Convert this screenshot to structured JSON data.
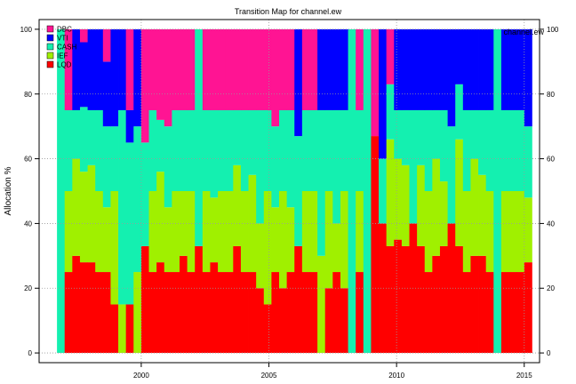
{
  "chart_data": {
    "type": "area",
    "stacked": true,
    "title": "Transition Map for channel.ew",
    "corner_label": "channel.ew",
    "ylabel": "Allocation %",
    "xlabel": "",
    "xlim": [
      1996.0,
      2015.6
    ],
    "ylim": [
      -3,
      103
    ],
    "x_ticks": [
      2000,
      2005,
      2010,
      2015
    ],
    "y_ticks": [
      0,
      20,
      40,
      60,
      80,
      100
    ],
    "grid": true,
    "legend_position": "top-left",
    "series": [
      {
        "name": "LQD",
        "color": "#ff0000"
      },
      {
        "name": "IEF",
        "color": "#a0f000"
      },
      {
        "name": "CASH",
        "color": "#14f0b0"
      },
      {
        "name": "VTI",
        "color": "#0000ff"
      },
      {
        "name": "DBC",
        "color": "#ff1493"
      }
    ],
    "data": {
      "x": [
        1996.7,
        1997.0,
        1997.3,
        1997.6,
        1997.9,
        1998.2,
        1998.5,
        1998.8,
        1999.1,
        1999.4,
        1999.7,
        2000.0,
        2000.3,
        2000.6,
        2000.9,
        2001.2,
        2001.5,
        2001.8,
        2002.1,
        2002.4,
        2002.7,
        2003.0,
        2003.3,
        2003.6,
        2003.9,
        2004.2,
        2004.5,
        2004.8,
        2005.1,
        2005.4,
        2005.7,
        2006.0,
        2006.3,
        2006.6,
        2006.9,
        2007.2,
        2007.5,
        2007.8,
        2008.1,
        2008.4,
        2008.7,
        2009.0,
        2009.3,
        2009.6,
        2009.9,
        2010.2,
        2010.5,
        2010.8,
        2011.1,
        2011.4,
        2011.7,
        2012.0,
        2012.3,
        2012.6,
        2012.9,
        2013.2,
        2013.5,
        2013.8,
        2014.1,
        2014.4,
        2014.7,
        2015.0
      ],
      "LQD": [
        0,
        25,
        30,
        28,
        28,
        25,
        25,
        15,
        0,
        15,
        0,
        33,
        25,
        28,
        25,
        25,
        30,
        25,
        33,
        25,
        28,
        25,
        25,
        33,
        25,
        25,
        20,
        15,
        25,
        20,
        25,
        33,
        25,
        25,
        0,
        20,
        25,
        20,
        0,
        25,
        0,
        67,
        40,
        33,
        35,
        33,
        40,
        33,
        25,
        30,
        33,
        40,
        33,
        25,
        30,
        30,
        25,
        0,
        25,
        25,
        25,
        28
      ],
      "IEF": [
        0,
        25,
        30,
        28,
        30,
        25,
        20,
        35,
        15,
        0,
        25,
        0,
        25,
        28,
        20,
        25,
        20,
        25,
        0,
        25,
        20,
        25,
        25,
        25,
        25,
        30,
        20,
        35,
        20,
        30,
        20,
        0,
        25,
        25,
        30,
        30,
        15,
        30,
        0,
        25,
        0,
        0,
        0,
        33,
        25,
        25,
        0,
        25,
        25,
        30,
        20,
        0,
        33,
        25,
        30,
        25,
        25,
        0,
        25,
        25,
        25,
        20
      ],
      "CASH": [
        100,
        25,
        15,
        20,
        17,
        25,
        25,
        20,
        60,
        50,
        45,
        32,
        25,
        16,
        25,
        25,
        25,
        25,
        67,
        25,
        27,
        25,
        25,
        17,
        25,
        20,
        35,
        25,
        25,
        25,
        30,
        34,
        25,
        25,
        45,
        25,
        35,
        25,
        100,
        25,
        100,
        0,
        20,
        17,
        15,
        17,
        35,
        17,
        25,
        15,
        22,
        30,
        17,
        25,
        15,
        20,
        25,
        100,
        25,
        25,
        25,
        22
      ],
      "VTI": [
        0,
        0,
        25,
        20,
        25,
        25,
        20,
        30,
        25,
        10,
        30,
        0,
        0,
        0,
        0,
        0,
        0,
        0,
        0,
        0,
        0,
        0,
        0,
        0,
        0,
        0,
        0,
        0,
        0,
        0,
        0,
        33,
        0,
        0,
        25,
        25,
        25,
        25,
        0,
        0,
        0,
        0,
        40,
        0,
        25,
        25,
        25,
        25,
        25,
        25,
        25,
        30,
        17,
        25,
        25,
        25,
        25,
        0,
        25,
        25,
        25,
        30
      ],
      "DBC": [
        0,
        25,
        0,
        4,
        0,
        0,
        10,
        0,
        0,
        25,
        0,
        35,
        25,
        28,
        30,
        25,
        25,
        25,
        0,
        25,
        25,
        25,
        25,
        25,
        25,
        25,
        25,
        25,
        30,
        25,
        25,
        0,
        25,
        25,
        0,
        0,
        0,
        0,
        0,
        25,
        0,
        33,
        0,
        17,
        0,
        0,
        0,
        0,
        0,
        0,
        0,
        0,
        0,
        0,
        0,
        0,
        0,
        0,
        0,
        0,
        0,
        0
      ]
    }
  }
}
